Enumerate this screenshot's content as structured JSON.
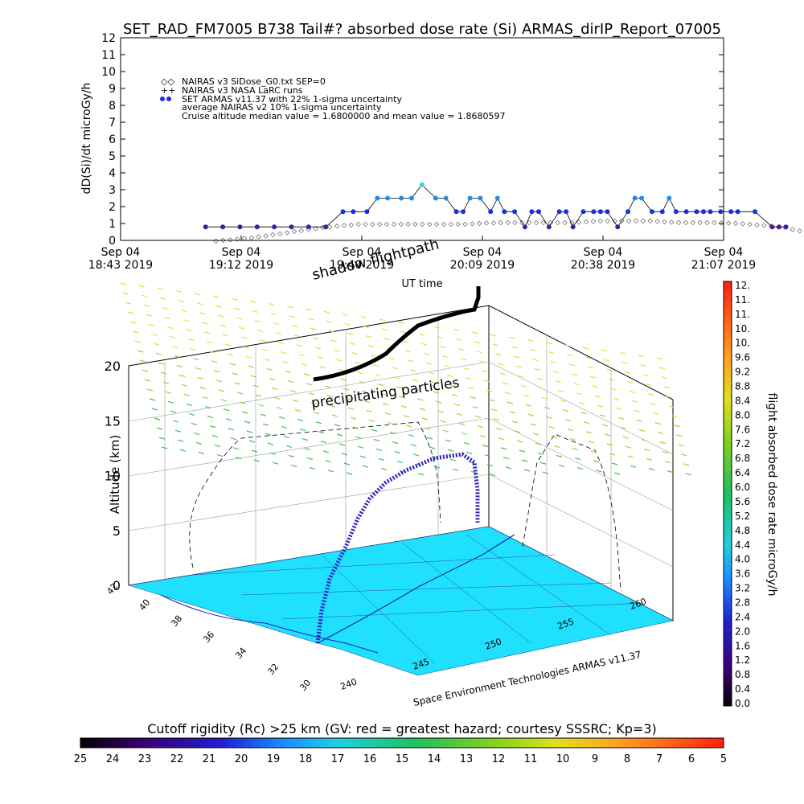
{
  "title": "SET_RAD_FM7005   B738 Tail#? absorbed dose rate (Si) ARMAS_dirIP_Report_07005",
  "timeseries": {
    "ylabel": "dD(Si)/dt microGy/h",
    "xlabel": "UT time",
    "legend": [
      "NAIRAS v3 SiDose_G0.txt SEP=0",
      "NAIRAS v3 NASA LaRC runs",
      "SET ARMAS v11.37 with 22% 1-sigma uncertainty",
      "average NAIRAS v2 10% 1-sigma uncertainty",
      "Cruise altitude median value = 1.6800000 and mean value = 1.8680597"
    ],
    "xticks": [
      {
        "d": "Sep 04",
        "t": "18:43 2019"
      },
      {
        "d": "Sep 04",
        "t": "19:12 2019"
      },
      {
        "d": "Sep 04",
        "t": "19:40 2019"
      },
      {
        "d": "Sep 04",
        "t": "20:09 2019"
      },
      {
        "d": "Sep 04",
        "t": "20:38 2019"
      },
      {
        "d": "Sep 04",
        "t": "21:07 2019"
      }
    ],
    "yticks": [
      "0",
      "1",
      "2",
      "3",
      "4",
      "5",
      "6",
      "7",
      "8",
      "9",
      "10",
      "11",
      "12"
    ]
  },
  "panel3d": {
    "zlabel": "Altitude (km)",
    "zticks": [
      "0",
      "5",
      "10",
      "15",
      "20"
    ],
    "lat_ticks": [
      "42",
      "40",
      "38",
      "36",
      "34",
      "32",
      "30"
    ],
    "lon_ticks": [
      "240",
      "245",
      "250",
      "255",
      "260"
    ],
    "shadow_label": "shadow flightpath",
    "precip_label": "precipitating particles",
    "credit": "Space Environment Technologies ARMAS v11.37"
  },
  "colorbar_right": {
    "label": "flight absorbed dose rate microGy/h",
    "ticks": [
      "12.",
      "11.",
      "11.",
      "10.",
      "10.",
      "9.6",
      "9.2",
      "8.8",
      "8.4",
      "8.0",
      "7.6",
      "7.2",
      "6.8",
      "6.4",
      "6.0",
      "5.6",
      "5.2",
      "4.8",
      "4.4",
      "4.0",
      "3.6",
      "3.2",
      "2.8",
      "2.4",
      "2.0",
      "1.6",
      "1.2",
      "0.8",
      "0.4",
      "0.0"
    ]
  },
  "colorbar_bottom": {
    "label": "Cutoff rigidity (Rc) >25 km (GV: red = greatest hazard; courtesy SSSRC; Kp=3)",
    "ticks": [
      "25",
      "24",
      "23",
      "22",
      "21",
      "20",
      "19",
      "18",
      "17",
      "16",
      "15",
      "14",
      "13",
      "12",
      "11",
      "10",
      "9",
      "8",
      "7",
      "6",
      "5"
    ]
  },
  "chart_data": {
    "type": "line",
    "x_range": [
      "2019-09-04 18:43",
      "2019-09-04 21:07"
    ],
    "ylim": [
      0,
      12
    ],
    "series": [
      {
        "name": "SET ARMAS v11.37 with 22% 1-sigma uncertainty",
        "x_min": [
          15,
          20,
          25,
          30,
          35,
          40,
          45,
          50,
          55,
          58,
          62,
          65,
          68,
          72,
          75,
          78,
          82,
          85,
          88,
          90,
          92,
          95,
          98,
          100,
          102,
          105,
          108,
          110,
          112,
          115,
          118,
          120,
          122,
          125,
          128,
          130,
          132,
          135,
          138,
          140,
          142,
          145,
          148,
          150,
          152,
          155,
          158,
          160,
          162,
          165,
          168,
          170,
          175,
          180,
          182,
          184
        ],
        "values": [
          0.8,
          0.8,
          0.8,
          0.8,
          0.8,
          0.8,
          0.8,
          0.8,
          1.7,
          1.7,
          1.7,
          2.5,
          2.5,
          2.5,
          2.5,
          3.3,
          2.5,
          2.5,
          1.7,
          1.7,
          2.5,
          2.5,
          1.7,
          2.5,
          1.7,
          1.7,
          0.8,
          1.7,
          1.7,
          0.8,
          1.7,
          1.7,
          0.8,
          1.7,
          1.7,
          1.7,
          1.7,
          0.8,
          1.7,
          2.5,
          2.5,
          1.7,
          1.7,
          2.5,
          1.7,
          1.7,
          1.7,
          1.7,
          1.7,
          1.7,
          1.7,
          1.7,
          1.7,
          0.8,
          0.8,
          0.8
        ]
      },
      {
        "name": "NAIRAS v3 SiDose_G0.txt SEP=0",
        "x_min": [
          15,
          25,
          35,
          45,
          55,
          65,
          75,
          85,
          95,
          105,
          115,
          125,
          135,
          145,
          155,
          165,
          175,
          185,
          195
        ],
        "values": [
          0,
          0.2,
          0.5,
          0.8,
          1.0,
          1.0,
          1.0,
          1.0,
          1.1,
          1.1,
          1.1,
          1.2,
          1.2,
          1.1,
          1.1,
          1.0,
          0.8,
          0.3,
          0
        ]
      }
    ]
  }
}
